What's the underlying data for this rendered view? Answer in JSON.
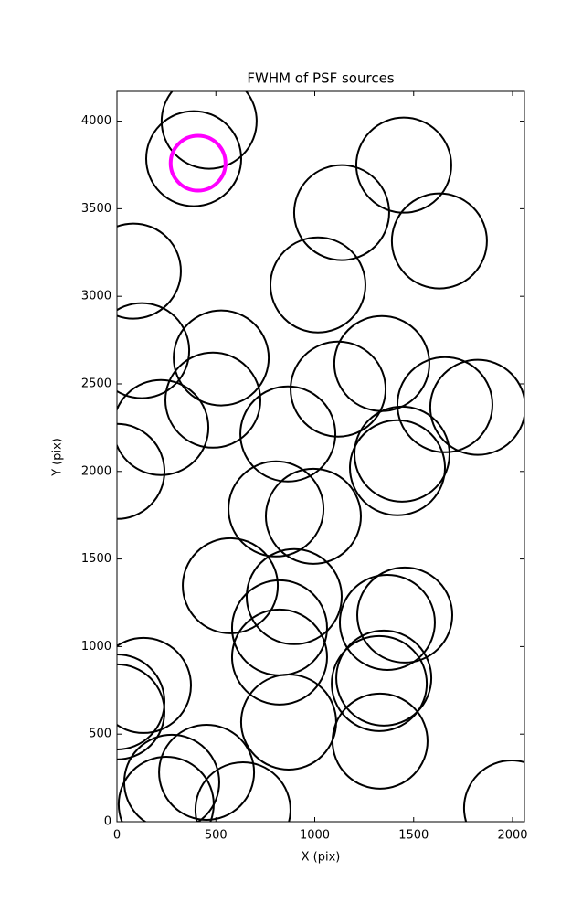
{
  "chart_data": {
    "type": "scatter",
    "title": "FWHM of PSF sources",
    "x_label": "X (pix)",
    "y_label": "Y (pix)",
    "xlim": [
      0,
      2060
    ],
    "ylim": [
      0,
      4170
    ],
    "xticks": [
      0,
      500,
      1000,
      1500,
      2000
    ],
    "yticks": [
      0,
      500,
      1000,
      1500,
      2000,
      2500,
      3000,
      3500,
      4000
    ],
    "series": [
      {
        "color": "#000000",
        "x": [
          466,
          388,
          1450,
          1136,
          1630,
          83,
          1016,
          125,
          527,
          1339,
          1118,
          485,
          1658,
          1824,
          222,
          864,
          1441,
          1418,
          0,
          804,
          993,
          573,
          896,
          1367,
          1455,
          822,
          822,
          134,
          1349,
          1326,
          0,
          0,
          868,
          1330,
          453,
          277,
          637,
          249,
          1995
        ],
        "y": [
          4000,
          3786,
          3749,
          3478,
          3316,
          3144,
          3065,
          2690,
          2648,
          2616,
          2470,
          2407,
          2381,
          2366,
          2251,
          2214,
          2099,
          2021,
          2000,
          1786,
          1744,
          1347,
          1285,
          1138,
          1180,
          1107,
          940,
          778,
          820,
          789,
          684,
          627,
          569,
          460,
          282,
          225,
          68,
          99,
          78
        ]
      },
      {
        "color": "#ff00ff",
        "x": [
          410
        ],
        "y": [
          3760
        ]
      }
    ]
  }
}
